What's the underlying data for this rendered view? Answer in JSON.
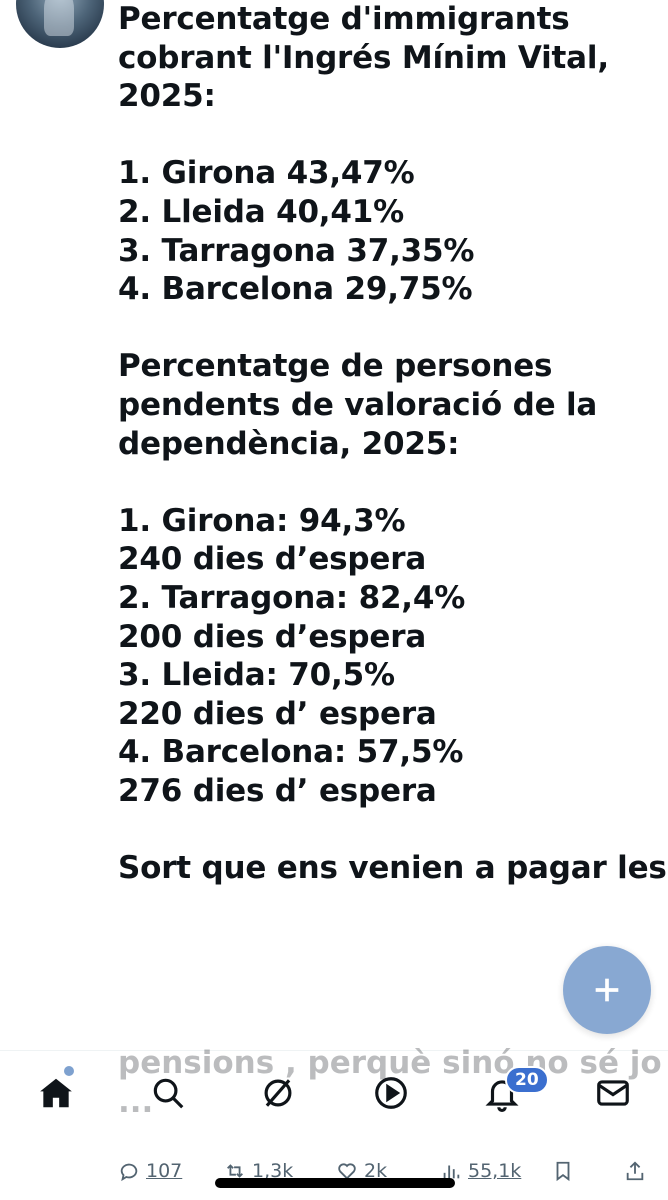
{
  "post": {
    "lines": [
      "Percentatge d'immigrants",
      "cobrant l'Ingrés Mínim Vital,",
      "2025:",
      "",
      "1. Girona 43,47%",
      "2. Lleida 40,41%",
      "3. Tarragona 37,35%",
      "4. Barcelona 29,75%",
      "",
      "Percentatge de persones",
      "pendents de valoració de la",
      "dependència, 2025:",
      "",
      "1. Girona: 94,3%",
      "240 dies d’espera",
      "2. Tarragona:  82,4%",
      "200 dies d’espera",
      "3. Lleida: 70,5%",
      "220 dies d’ espera",
      "4. Barcelona: 57,5%",
      "276 dies d’ espera",
      "",
      "Sort que ens venien a pagar les",
      "pensions , perquè sinó no sé jo",
      "..."
    ]
  },
  "tabbar": {
    "tabs": [
      {
        "name": "home-icon",
        "active": true
      },
      {
        "name": "search-icon"
      },
      {
        "name": "grok-icon"
      },
      {
        "name": "play-icon"
      },
      {
        "name": "bell-icon"
      },
      {
        "name": "mail-icon"
      }
    ],
    "notifications_badge": "20"
  },
  "actions": {
    "replies": "107",
    "reposts": "1,3k",
    "likes": "2k",
    "views": "55,1k"
  },
  "colors": {
    "accent": "#7ea1cf",
    "text": "#0f1419",
    "muted": "#536471"
  }
}
